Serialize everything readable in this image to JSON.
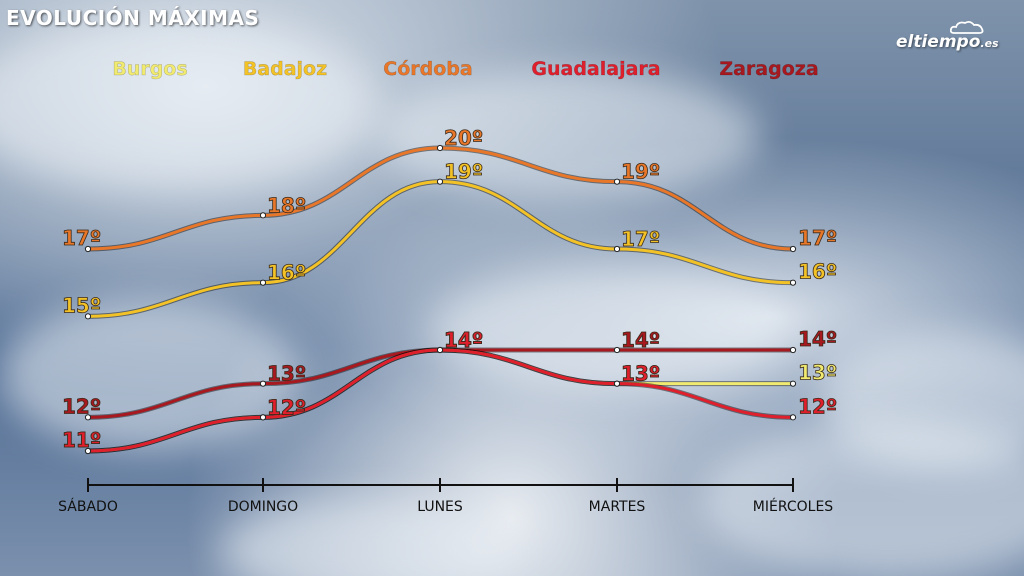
{
  "title": "EVOLUCIÓN MÁXIMAS",
  "brand": {
    "name": "eltiempo",
    "suffix": ".es"
  },
  "chart_data": {
    "type": "line",
    "title": "EVOLUCIÓN MÁXIMAS",
    "categories": [
      "SÁBADO",
      "DOMINGO",
      "LUNES",
      "MARTES",
      "MIÉRCOLES"
    ],
    "unit_suffix": "º",
    "legend_position": "top",
    "grid": false,
    "ylim": [
      10,
      21
    ],
    "series": [
      {
        "name": "Burgos",
        "color": "#f0ea70",
        "values": [
          11,
          12,
          14,
          13,
          13
        ]
      },
      {
        "name": "Badajoz",
        "color": "#f2c227",
        "values": [
          15,
          16,
          19,
          17,
          16
        ]
      },
      {
        "name": "Córdoba",
        "color": "#e8772a",
        "values": [
          17,
          18,
          20,
          19,
          17
        ]
      },
      {
        "name": "Guadalajara",
        "color": "#e01f2d",
        "values": [
          11,
          12,
          14,
          13,
          12
        ]
      },
      {
        "name": "Zaragoza",
        "color": "#a8181f",
        "values": [
          12,
          13,
          14,
          14,
          14
        ]
      }
    ]
  }
}
